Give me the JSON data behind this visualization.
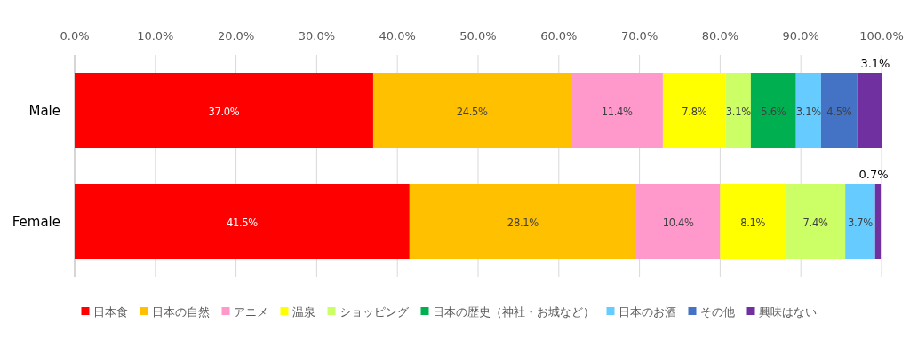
{
  "chart_data": {
    "type": "bar",
    "orientation": "horizontal",
    "stacked": true,
    "categories": [
      "Male",
      "Female"
    ],
    "series": [
      {
        "name": "日本食",
        "color": "#ff0000",
        "values": [
          37.0,
          41.5
        ],
        "value_labels": [
          "37.0%",
          "41.5%"
        ]
      },
      {
        "name": "日本の自然",
        "color": "#ffc000",
        "values": [
          24.5,
          28.1
        ],
        "value_labels": [
          "24.5%",
          "28.1%"
        ]
      },
      {
        "name": "アニメ",
        "color": "#ff99cc",
        "values": [
          11.4,
          10.4
        ],
        "value_labels": [
          "11.4%",
          "10.4%"
        ]
      },
      {
        "name": "温泉",
        "color": "#ffff00",
        "values": [
          7.8,
          8.1
        ],
        "value_labels": [
          "7.8%",
          "8.1%"
        ]
      },
      {
        "name": "ショッピング",
        "color": "#ccff66",
        "values": [
          3.1,
          7.4
        ],
        "value_labels": [
          "3.1%",
          "7.4%"
        ]
      },
      {
        "name": "日本の歴史（神社・お城など）",
        "color": "#00b050",
        "values": [
          5.6,
          null
        ],
        "value_labels": [
          "5.6%",
          null
        ]
      },
      {
        "name": "日本のお酒",
        "color": "#66ccff",
        "values": [
          3.1,
          3.7
        ],
        "value_labels": [
          "3.1%",
          "3.7%"
        ]
      },
      {
        "name": "その他",
        "color": "#4472c4",
        "values": [
          4.5,
          null
        ],
        "value_labels": [
          "4.5%",
          null
        ]
      },
      {
        "name": "興味はない",
        "color": "#7030a0",
        "values": [
          3.1,
          0.7
        ],
        "value_labels": [
          "3.1%",
          "0.7%"
        ]
      }
    ],
    "xlim": [
      0,
      100
    ],
    "xticks": [
      {
        "value": 0,
        "label": "0.0%"
      },
      {
        "value": 10,
        "label": "10.0%"
      },
      {
        "value": 20,
        "label": "20.0%"
      },
      {
        "value": 30,
        "label": "30.0%"
      },
      {
        "value": 40,
        "label": "40.0%"
      },
      {
        "value": 50,
        "label": "50.0%"
      },
      {
        "value": 60,
        "label": "60.0%"
      },
      {
        "value": 70,
        "label": "70.0%"
      },
      {
        "value": 80,
        "label": "80.0%"
      },
      {
        "value": 90,
        "label": "90.0%"
      },
      {
        "value": 100,
        "label": "100.0%"
      }
    ],
    "grid": "x",
    "legend": "bottom"
  }
}
